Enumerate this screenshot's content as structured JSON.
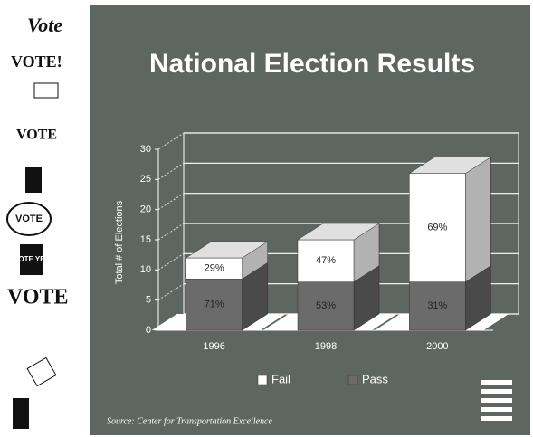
{
  "chart_data": {
    "type": "stacked_bar_3d",
    "title": "National Election Results",
    "y_label": "Total # of Elections",
    "categories": [
      "1996",
      "1998",
      "2000"
    ],
    "series": [
      {
        "name": "Pass",
        "color": "#6b6b6b",
        "values": [
          8.5,
          8,
          8
        ],
        "value_labels": [
          "71%",
          "53%",
          "31%"
        ]
      },
      {
        "name": "Fail",
        "color": "#ffffff",
        "values": [
          3.5,
          7,
          18
        ],
        "value_labels": [
          "29%",
          "47%",
          "69%"
        ]
      }
    ],
    "ylim": [
      0,
      30
    ],
    "yticks": [
      0,
      5,
      10,
      15,
      20,
      25,
      30
    ],
    "grid": true,
    "legend_order": [
      1,
      0
    ],
    "source": "Source: Center for Transportation Excellence"
  },
  "sidebar": [
    "Vote",
    "VOTE!",
    "VOTE",
    "VOTE",
    "VOTE YES",
    "VOTE"
  ]
}
